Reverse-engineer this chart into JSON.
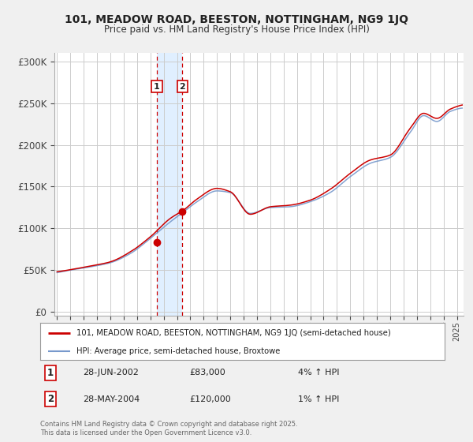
{
  "title1": "101, MEADOW ROAD, BEESTON, NOTTINGHAM, NG9 1JQ",
  "title2": "Price paid vs. HM Land Registry's House Price Index (HPI)",
  "ylabel_ticks": [
    "£0",
    "£50K",
    "£100K",
    "£150K",
    "£200K",
    "£250K",
    "£300K"
  ],
  "ytick_values": [
    0,
    50000,
    100000,
    150000,
    200000,
    250000,
    300000
  ],
  "ylim": [
    -5000,
    310000
  ],
  "xlim_start": 1994.8,
  "xlim_end": 2025.5,
  "sale1_date": 2002.49,
  "sale1_price": 83000,
  "sale2_date": 2004.41,
  "sale2_price": 120000,
  "shade_x1": 2002.49,
  "shade_x2": 2004.41,
  "legend_line1": "101, MEADOW ROAD, BEESTON, NOTTINGHAM, NG9 1JQ (semi-detached house)",
  "legend_line2": "HPI: Average price, semi-detached house, Broxtowe",
  "table_row1": [
    "1",
    "28-JUN-2002",
    "£83,000",
    "4% ↑ HPI"
  ],
  "table_row2": [
    "2",
    "28-MAY-2004",
    "£120,000",
    "1% ↑ HPI"
  ],
  "footer": "Contains HM Land Registry data © Crown copyright and database right 2025.\nThis data is licensed under the Open Government Licence v3.0.",
  "hpi_color": "#7799cc",
  "price_color": "#cc0000",
  "shade_color": "#ddeeff",
  "grid_color": "#cccccc",
  "background_color": "#f0f0f0",
  "plot_bg_color": "#ffffff"
}
